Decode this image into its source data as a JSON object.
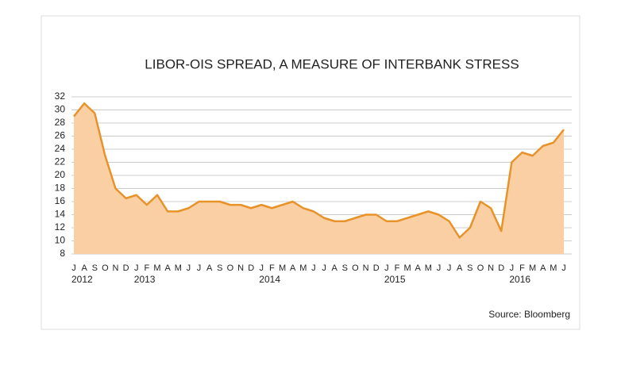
{
  "chart_data": {
    "type": "area",
    "title": "LIBOR-OIS SPREAD, A MEASURE OF INTERBANK STRESS",
    "source": "Source: Bloomberg",
    "categories": [
      "J",
      "A",
      "S",
      "O",
      "N",
      "D",
      "J",
      "F",
      "M",
      "A",
      "M",
      "J",
      "J",
      "A",
      "S",
      "O",
      "N",
      "D",
      "J",
      "F",
      "M",
      "A",
      "M",
      "J",
      "J",
      "A",
      "S",
      "O",
      "N",
      "D",
      "J",
      "F",
      "M",
      "A",
      "M",
      "J",
      "J",
      "A",
      "S",
      "O",
      "N",
      "D",
      "J",
      "F",
      "M",
      "A",
      "M",
      "J"
    ],
    "category_years": [
      "2012",
      null,
      null,
      null,
      null,
      null,
      "2013",
      null,
      null,
      null,
      null,
      null,
      null,
      null,
      null,
      null,
      null,
      null,
      "2014",
      null,
      null,
      null,
      null,
      null,
      null,
      null,
      null,
      null,
      null,
      null,
      "2015",
      null,
      null,
      null,
      null,
      null,
      null,
      null,
      null,
      null,
      null,
      null,
      "2016",
      null,
      null,
      null,
      null,
      null
    ],
    "series": [
      {
        "color": "#e8922a",
        "fill": "#f9cfa3",
        "values": [
          29,
          31,
          29.5,
          23,
          18,
          16.5,
          17,
          15.5,
          17,
          14.5,
          14.5,
          15,
          16,
          16,
          16,
          15.5,
          15.5,
          15,
          15.5,
          15,
          15.5,
          16,
          15,
          14.5,
          13.5,
          13,
          13,
          13.5,
          14,
          14,
          13,
          13,
          13.5,
          14,
          14.5,
          14,
          13,
          10.5,
          12,
          16,
          15,
          11.5,
          22,
          23.5,
          23,
          24.5,
          25,
          27
        ]
      }
    ],
    "ylim": [
      8,
      32
    ],
    "yticks": [
      8,
      10,
      12,
      14,
      16,
      18,
      20,
      22,
      24,
      26,
      28,
      30,
      32
    ],
    "grid": true
  }
}
